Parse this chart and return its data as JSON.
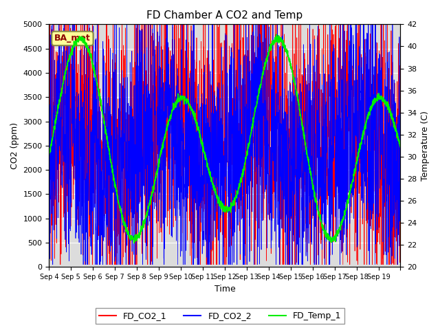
{
  "title": "FD Chamber A CO2 and Temp",
  "xlabel": "Time",
  "ylabel_left": "CO2 (ppm)",
  "ylabel_right": "Temperature (C)",
  "ylim_left": [
    0,
    5000
  ],
  "ylim_right": [
    20,
    42
  ],
  "yticks_left": [
    0,
    500,
    1000,
    1500,
    2000,
    2500,
    3000,
    3500,
    4000,
    4500,
    5000
  ],
  "yticks_right": [
    20,
    22,
    24,
    26,
    28,
    30,
    32,
    34,
    36,
    38,
    40,
    42
  ],
  "color_co2_1": "red",
  "color_co2_2": "blue",
  "color_temp": "#00ee00",
  "label_co2_1": "FD_CO2_1",
  "label_co2_2": "FD_CO2_2",
  "label_temp": "FD_Temp_1",
  "bg_color": "#dcdcdc",
  "annotation_text": "BA_met",
  "xtick_labels": [
    "Sep 4",
    "Sep 5",
    "Sep 6",
    "Sep 7",
    "Sep 8",
    "Sep 9",
    "Sep 10",
    "Sep 11",
    "Sep 12",
    "Sep 13",
    "Sep 14",
    "Sep 15",
    "Sep 16",
    "Sep 17",
    "Sep 18",
    "Sep 19"
  ],
  "n_days": 16,
  "points_per_day": 144,
  "seed": 42
}
